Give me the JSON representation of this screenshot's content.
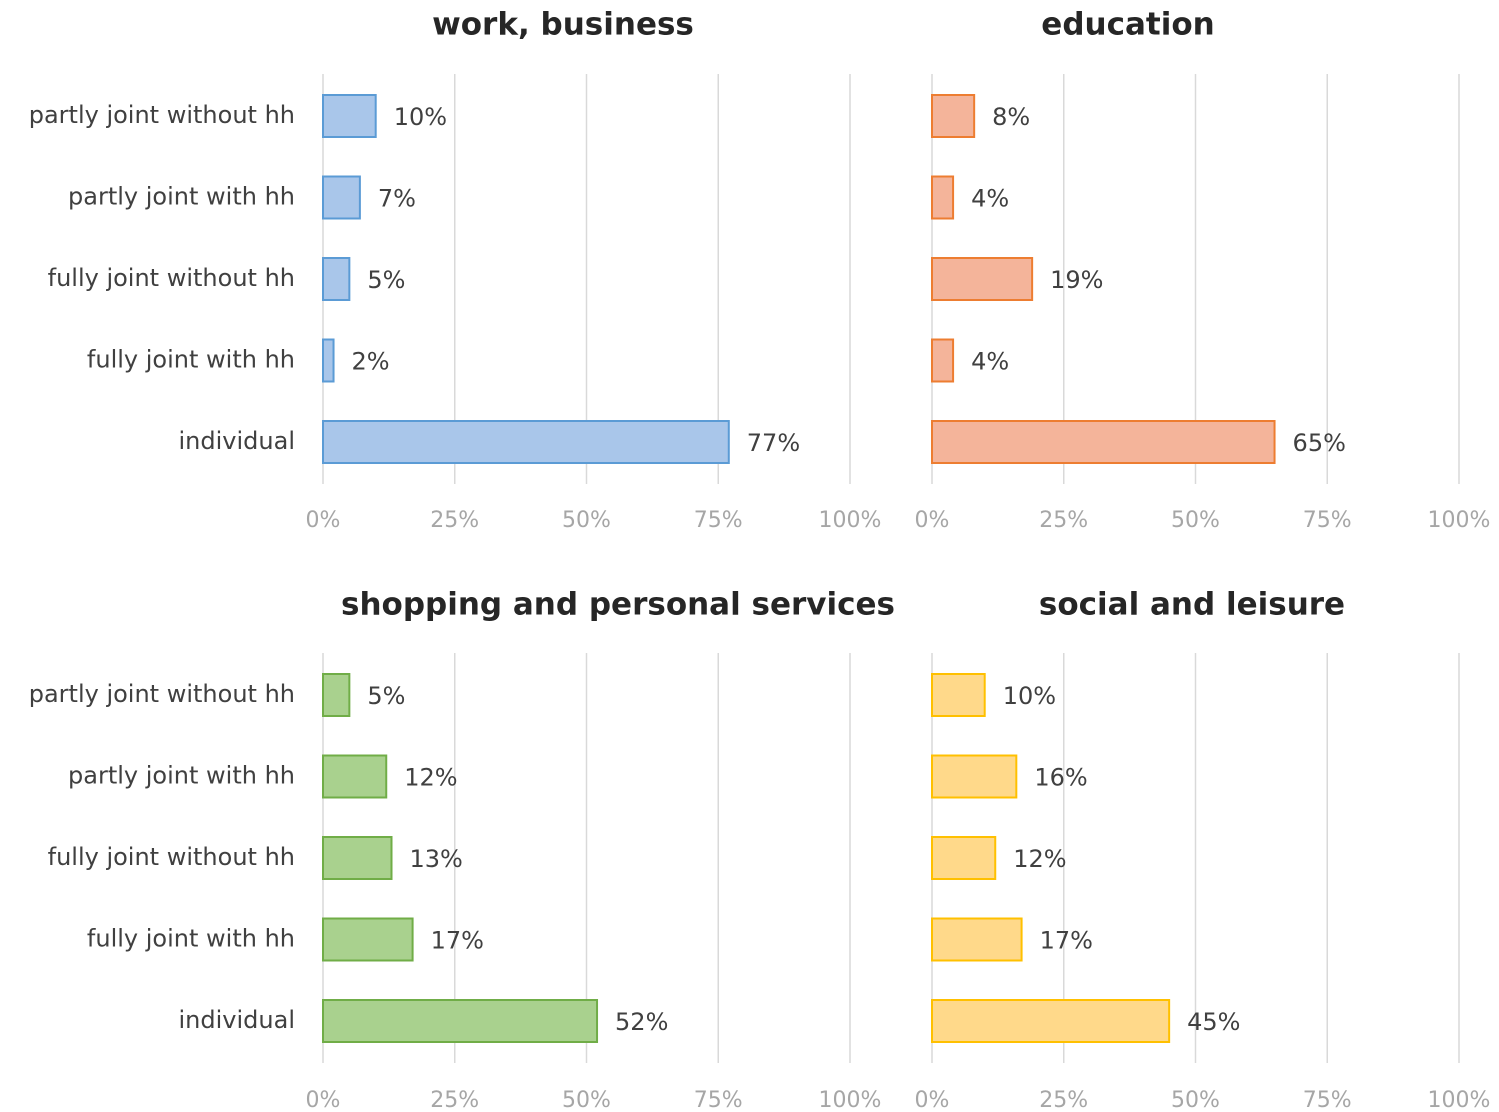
{
  "chart_data": [
    {
      "type": "barh",
      "title": "work, business",
      "categories": [
        "partly joint without hh",
        "partly joint with hh",
        "fully joint without hh",
        "fully joint with hh",
        "individual"
      ],
      "values": [
        10,
        7,
        5,
        2,
        77
      ],
      "value_labels": [
        "10%",
        "7%",
        "5%",
        "2%",
        "77%"
      ],
      "color": "#a9c6ea",
      "edge_color": "#5b9bd5",
      "xlim": [
        0,
        100
      ],
      "xticks": [
        {
          "value": 0,
          "label": "0%"
        },
        {
          "value": 25,
          "label": "25%"
        },
        {
          "value": 50,
          "label": "50%"
        },
        {
          "value": 75,
          "label": "75%"
        },
        {
          "value": 100,
          "label": "100%"
        }
      ],
      "grid": true
    },
    {
      "type": "barh",
      "title": "education",
      "values": [
        8,
        4,
        19,
        4,
        65
      ],
      "value_labels": [
        "8%",
        "4%",
        "19%",
        "4%",
        "65%"
      ],
      "color": "#f4b49a",
      "edge_color": "#ed7d31",
      "xlim": [
        0,
        100
      ],
      "xticks": [
        {
          "value": 0,
          "label": "0%"
        },
        {
          "value": 25,
          "label": "25%"
        },
        {
          "value": 50,
          "label": "50%"
        },
        {
          "value": 75,
          "label": "75%"
        },
        {
          "value": 100,
          "label": "100%"
        }
      ],
      "grid": true
    },
    {
      "type": "barh",
      "title": "shopping and personal services",
      "categories": [
        "partly joint without hh",
        "partly joint with hh",
        "fully joint without hh",
        "fully joint with hh",
        "individual"
      ],
      "values": [
        5,
        12,
        13,
        17,
        52
      ],
      "value_labels": [
        "5%",
        "12%",
        "13%",
        "17%",
        "52%"
      ],
      "color": "#a9d18e",
      "edge_color": "#70ad47",
      "xlim": [
        0,
        100
      ],
      "xticks": [
        {
          "value": 0,
          "label": "0%"
        },
        {
          "value": 25,
          "label": "25%"
        },
        {
          "value": 50,
          "label": "50%"
        },
        {
          "value": 75,
          "label": "75%"
        },
        {
          "value": 100,
          "label": "100%"
        }
      ],
      "grid": true
    },
    {
      "type": "barh",
      "title": "social and leisure",
      "values": [
        10,
        16,
        12,
        17,
        45
      ],
      "value_labels": [
        "10%",
        "16%",
        "12%",
        "17%",
        "45%"
      ],
      "color": "#ffd98a",
      "edge_color": "#ffc000",
      "xlim": [
        0,
        100
      ],
      "xticks": [
        {
          "value": 0,
          "label": "0%"
        },
        {
          "value": 25,
          "label": "25%"
        },
        {
          "value": 50,
          "label": "50%"
        },
        {
          "value": 75,
          "label": "75%"
        },
        {
          "value": 100,
          "label": "100%"
        }
      ],
      "grid": true
    }
  ]
}
